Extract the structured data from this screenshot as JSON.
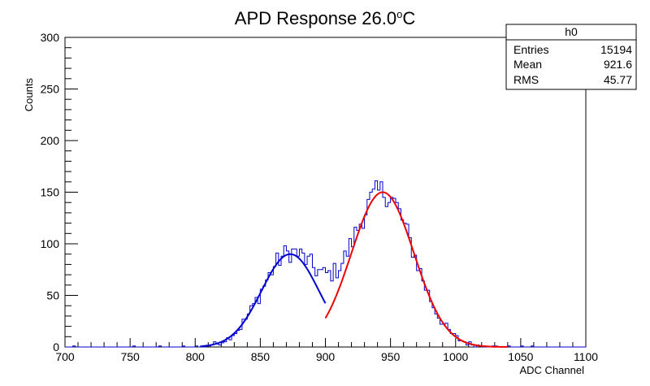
{
  "chart_data": {
    "type": "histogram",
    "title_main": "APD Response 26.0",
    "title_degree": "o",
    "title_unit": "C",
    "xlabel": "ADC Channel",
    "ylabel": "Counts",
    "xlim": [
      700,
      1100
    ],
    "ylim": [
      0,
      300
    ],
    "x_ticks": [
      700,
      750,
      800,
      850,
      900,
      950,
      1000,
      1050,
      1100
    ],
    "y_ticks": [
      0,
      50,
      100,
      150,
      200,
      250,
      300
    ],
    "bin_width": 2,
    "series_color": "#0000cc",
    "fits": [
      {
        "color": "#0000cc",
        "x_range": [
          805,
          900
        ],
        "amplitude": 90,
        "mean": 873,
        "sigma": 22
      },
      {
        "color": "#ee0000",
        "x_range": [
          900,
          1040
        ],
        "amplitude": 150,
        "mean": 944,
        "sigma": 24
      }
    ],
    "stats_box": {
      "name": "h0",
      "rows": [
        {
          "label": "Entries",
          "value": "15194"
        },
        {
          "label": "Mean",
          "value": "921.6"
        },
        {
          "label": "RMS",
          "value": "45.77"
        }
      ]
    }
  }
}
